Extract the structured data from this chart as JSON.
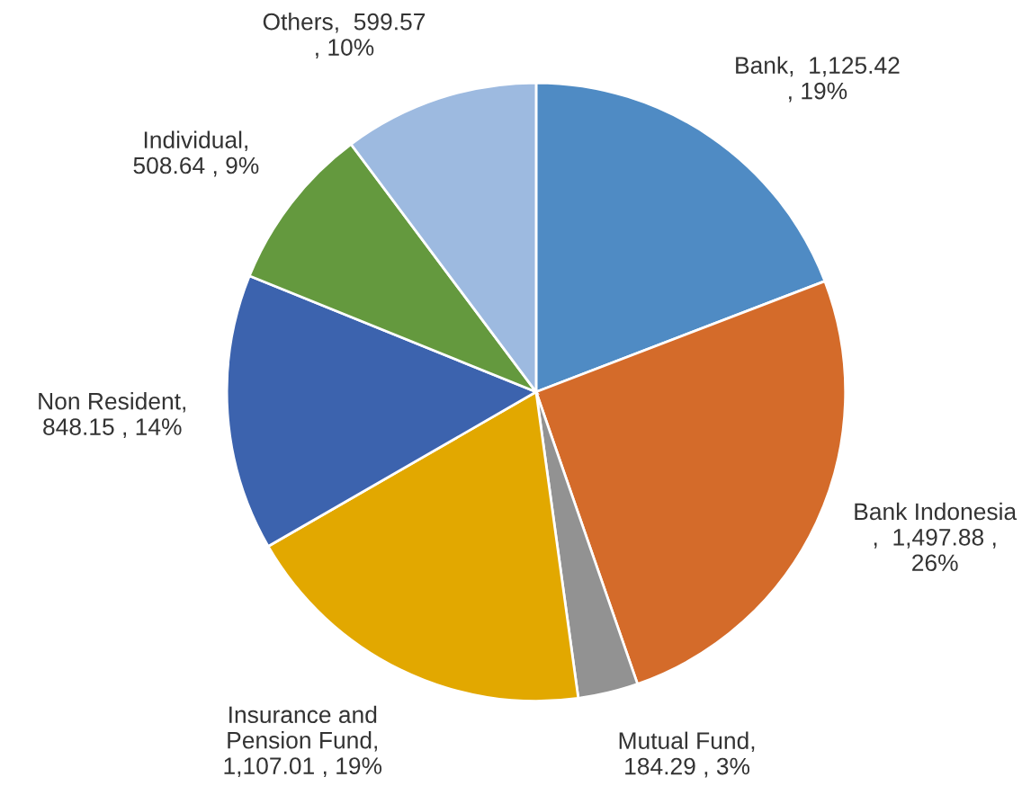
{
  "chart_data": {
    "type": "pie",
    "categories": [
      "Bank",
      "Bank Indonesia",
      "Mutual Fund",
      "Insurance and Pension Fund",
      "Non Resident",
      "Individual",
      "Others"
    ],
    "values": [
      1125.42,
      1497.88,
      184.29,
      1107.01,
      848.15,
      508.64,
      599.57
    ],
    "colors": [
      "#4f8bc4",
      "#d46b2a",
      "#929292",
      "#e2a800",
      "#3c63ae",
      "#64993e",
      "#9dbae0"
    ],
    "value_labels": [
      ",  1,125.42\n, 19%",
      "\n,  1,497.88 ,\n26%",
      ",\n184.29 , 3%",
      ",\n1,107.01 , 19%",
      ",\n848.15 , 14%",
      ",\n508.64 , 9%",
      ",  599.57\n, 10%"
    ],
    "legend": false
  }
}
